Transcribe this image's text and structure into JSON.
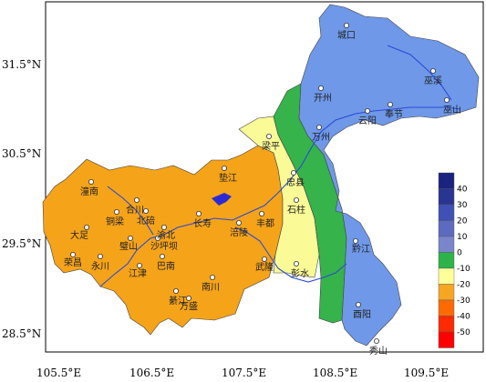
{
  "axes": {
    "lat_labels": [
      "31.5°N",
      "30.5°N",
      "29.5°N",
      "28.5°N"
    ],
    "lon_labels": [
      "105.5°E",
      "106.5°E",
      "107.5°E",
      "108.5°E",
      "109.5°E"
    ]
  },
  "legend": {
    "ticks": [
      "40",
      "30",
      "20",
      "10",
      "0",
      "-10",
      "-20",
      "-30",
      "-40",
      "-50"
    ],
    "colors": [
      "#1a237e",
      "#283593",
      "#3f51b5",
      "#5c6bc0",
      "#7986cb",
      "#2db34a",
      "#ffff99",
      "#f6a623",
      "#ff6a00",
      "#ff2a00",
      "#ff0000"
    ]
  },
  "regions": {
    "orange_color": "#f5a319",
    "yellow_color": "#fafa96",
    "green_color": "#36b34a",
    "blue_color": "#6f98e8",
    "river_color": "#2b4ad6"
  },
  "cities": [
    {
      "name": "城口"
    },
    {
      "name": "巫溪"
    },
    {
      "name": "开州"
    },
    {
      "name": "云阳"
    },
    {
      "name": "奉节"
    },
    {
      "name": "巫山"
    },
    {
      "name": "万州"
    },
    {
      "name": "梁平"
    },
    {
      "name": "忠县"
    },
    {
      "name": "石柱"
    },
    {
      "name": "垫江"
    },
    {
      "name": "潼南"
    },
    {
      "name": "合川"
    },
    {
      "name": "铜梁"
    },
    {
      "name": "北碚"
    },
    {
      "name": "长寿"
    },
    {
      "name": "丰都"
    },
    {
      "name": "涪陵"
    },
    {
      "name": "大足"
    },
    {
      "name": "璧山"
    },
    {
      "name": "沙坪坝"
    },
    {
      "name": "渝北"
    },
    {
      "name": "永川"
    },
    {
      "name": "巴南"
    },
    {
      "name": "荣昌"
    },
    {
      "name": "江津"
    },
    {
      "name": "南川"
    },
    {
      "name": "武隆"
    },
    {
      "name": "彭水"
    },
    {
      "name": "綦江"
    },
    {
      "name": "万盛"
    },
    {
      "name": "黔江"
    },
    {
      "name": "酉阳"
    },
    {
      "name": "秀山"
    }
  ]
}
